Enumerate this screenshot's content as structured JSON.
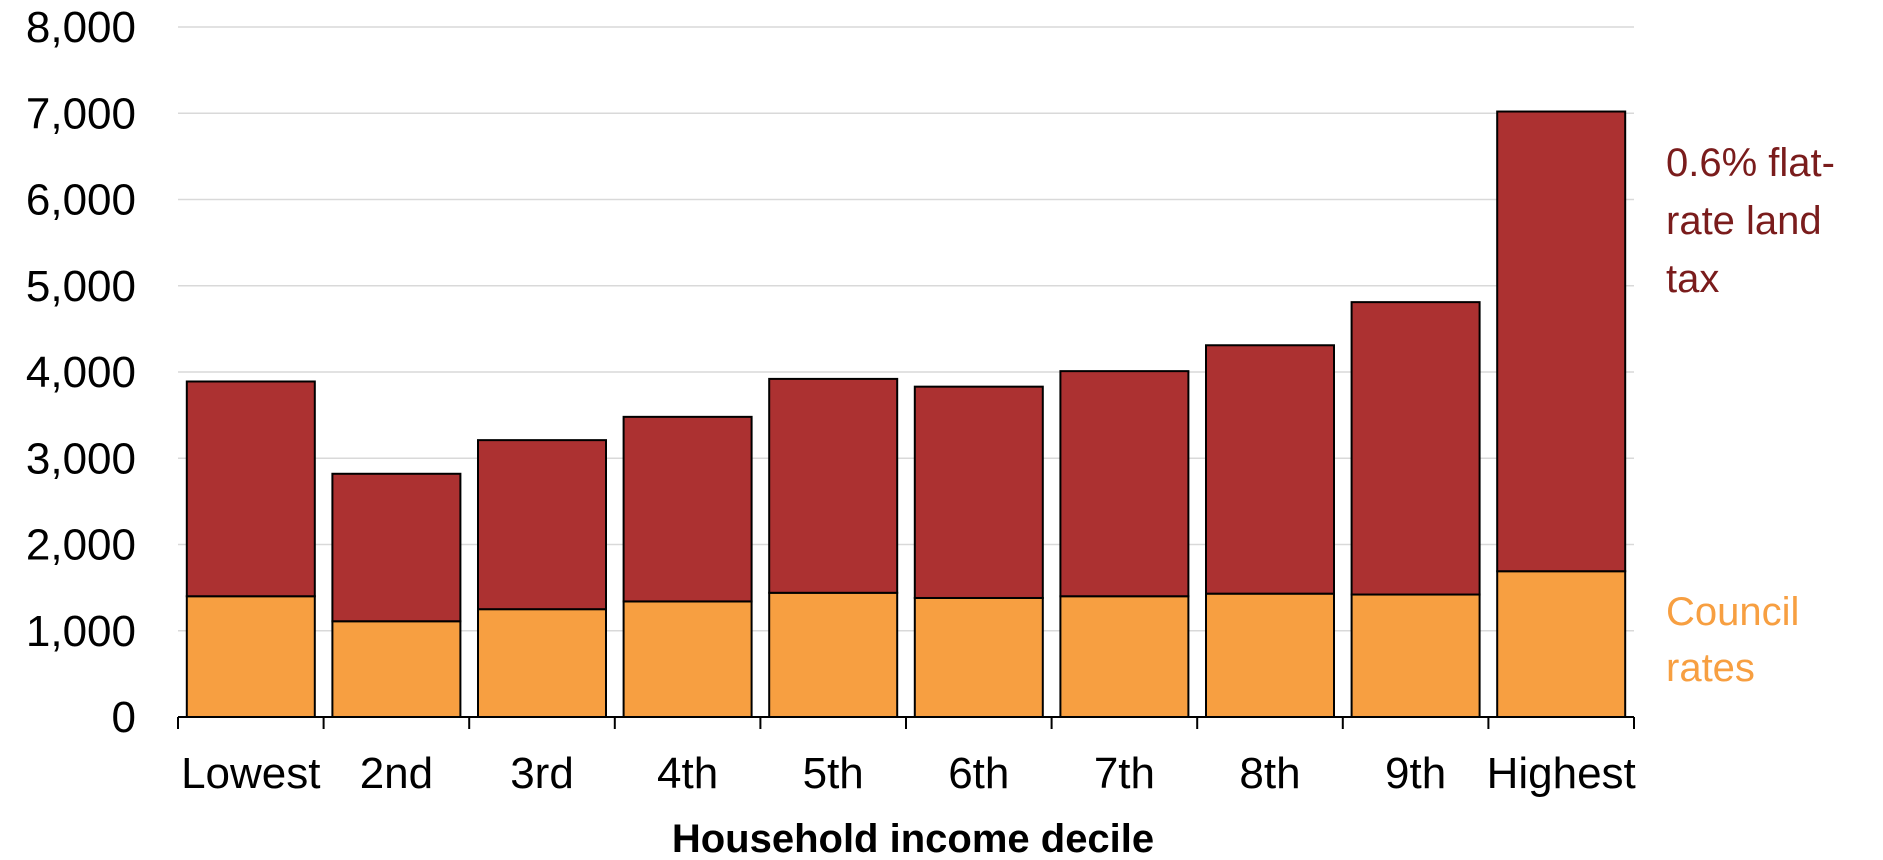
{
  "chart_data": {
    "type": "bar",
    "stacked": true,
    "categories": [
      "Lowest",
      "2nd",
      "3rd",
      "4th",
      "5th",
      "6th",
      "7th",
      "8th",
      "9th",
      "Highest"
    ],
    "series": [
      {
        "name": "Council rates",
        "color": "#f79f41",
        "values": [
          1400,
          1110,
          1250,
          1340,
          1440,
          1380,
          1400,
          1430,
          1420,
          1690
        ]
      },
      {
        "name": "0.6% flat-rate land tax",
        "color": "#ac3131",
        "values": [
          2490,
          1710,
          1960,
          2140,
          2480,
          2450,
          2610,
          2880,
          3390,
          5330
        ]
      }
    ],
    "series_labels": {
      "land_tax": [
        "0.6% flat-",
        "rate land",
        "tax"
      ],
      "council": [
        "Council",
        "rates"
      ]
    },
    "xlabel": "Household income decile",
    "ylabel": "",
    "ylim": [
      0,
      8000
    ],
    "yticks": [
      0,
      1000,
      2000,
      3000,
      4000,
      5000,
      6000,
      7000,
      8000
    ],
    "ytick_labels": [
      "0",
      "1,000",
      "2,000",
      "3,000",
      "4,000",
      "5,000",
      "6,000",
      "7,000",
      "8,000"
    ],
    "grid": true,
    "legend": "right",
    "label_colors": {
      "land_tax": "#7a1c1c",
      "council": "#f79f41"
    }
  }
}
